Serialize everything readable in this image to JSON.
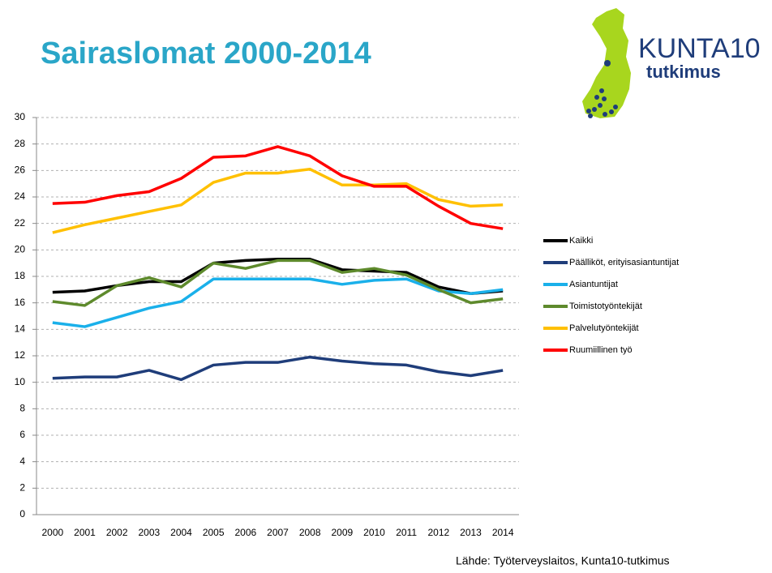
{
  "logo": {
    "name": "KUNTA10",
    "subtitle": "tutkimus"
  },
  "chart_data": {
    "type": "line",
    "title": "Sairaslomat 2000-2014",
    "source": "Lähde: Työterveyslaitos, Kunta10-tutkimus",
    "categories": [
      "2000",
      "2001",
      "2002",
      "2003",
      "2004",
      "2005",
      "2006",
      "2007",
      "2008",
      "2009",
      "2010",
      "2011",
      "2012",
      "2013",
      "2014"
    ],
    "ylim": [
      0,
      30
    ],
    "yticks": [
      0,
      2,
      4,
      6,
      8,
      10,
      12,
      14,
      16,
      18,
      20,
      22,
      24,
      26,
      28,
      30
    ],
    "grid": true,
    "legend": "right",
    "series": [
      {
        "name": "Kaikki",
        "color": "#000000",
        "values": [
          16.8,
          16.9,
          17.3,
          17.6,
          17.6,
          19.0,
          19.2,
          19.3,
          19.3,
          18.5,
          18.4,
          18.3,
          17.2,
          16.7,
          16.9
        ]
      },
      {
        "name": "Päälliköt, erityisasiantuntijat",
        "color": "#1f3d7a",
        "values": [
          10.3,
          10.4,
          10.4,
          10.9,
          10.2,
          11.3,
          11.5,
          11.5,
          11.9,
          11.6,
          11.4,
          11.3,
          10.8,
          10.5,
          10.9
        ]
      },
      {
        "name": "Asiantuntijat",
        "color": "#1ab0ea",
        "values": [
          14.5,
          14.2,
          14.9,
          15.6,
          16.1,
          17.8,
          17.8,
          17.8,
          17.8,
          17.4,
          17.7,
          17.8,
          16.9,
          16.7,
          17.0
        ]
      },
      {
        "name": "Toimistotyöntekijät",
        "color": "#5e8a2c",
        "values": [
          16.1,
          15.8,
          17.3,
          17.9,
          17.2,
          19.0,
          18.6,
          19.2,
          19.2,
          18.3,
          18.6,
          18.1,
          17.0,
          16.0,
          16.3
        ]
      },
      {
        "name": "Palvelutyöntekijät",
        "color": "#ffc000",
        "values": [
          21.3,
          21.9,
          22.4,
          22.9,
          23.4,
          25.1,
          25.8,
          25.8,
          26.1,
          24.9,
          24.9,
          25.0,
          23.8,
          23.3,
          23.4
        ]
      },
      {
        "name": "Ruumiillinen työ",
        "color": "#ff0000",
        "values": [
          23.5,
          23.6,
          24.1,
          24.4,
          25.4,
          27.0,
          27.1,
          27.8,
          27.1,
          25.6,
          24.8,
          24.8,
          23.3,
          22.0,
          21.6
        ]
      }
    ]
  }
}
